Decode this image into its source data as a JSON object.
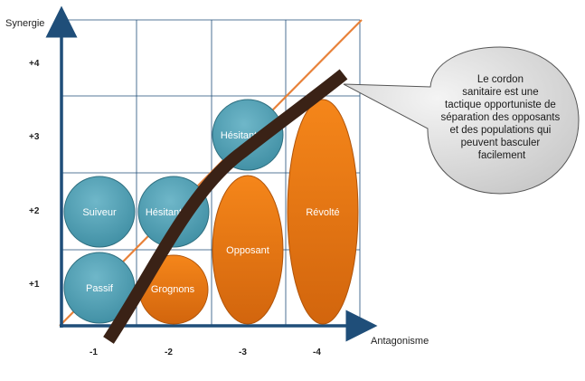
{
  "axes": {
    "y_title": "Synergie",
    "x_title": "Antagonisme",
    "y_ticks": [
      "+4",
      "+3",
      "+2",
      "+1"
    ],
    "x_ticks": [
      "-1",
      "-2",
      "-3",
      "-4"
    ]
  },
  "shapes": [
    {
      "id": "passif",
      "label": "Passif",
      "color": "#4e9fb3"
    },
    {
      "id": "suiveur",
      "label": "Suiveur",
      "color": "#4e9fb3"
    },
    {
      "id": "hesitant-1",
      "label": "Hésitant",
      "color": "#4e9fb3"
    },
    {
      "id": "grognons",
      "label": "Grognons",
      "color": "#e8700f"
    },
    {
      "id": "hesitant-2",
      "label": "Hésitant",
      "color": "#4e9fb3"
    },
    {
      "id": "opposant",
      "label": "Opposant",
      "color": "#e8700f"
    },
    {
      "id": "revolte",
      "label": "Révolté",
      "color": "#e8700f"
    }
  ],
  "callout": {
    "lines": [
      "Le cordon",
      "sanitaire est une",
      "tactique opportuniste de",
      "séparation des opposants",
      "et des populations qui",
      "peuvent basculer",
      "facilement"
    ]
  },
  "colors": {
    "axis": "#1f4e79",
    "grid": "#1f4e79",
    "diagonal": "#e8823a",
    "curve": "#3a2216",
    "callout_fill": "#dcdcdc"
  }
}
